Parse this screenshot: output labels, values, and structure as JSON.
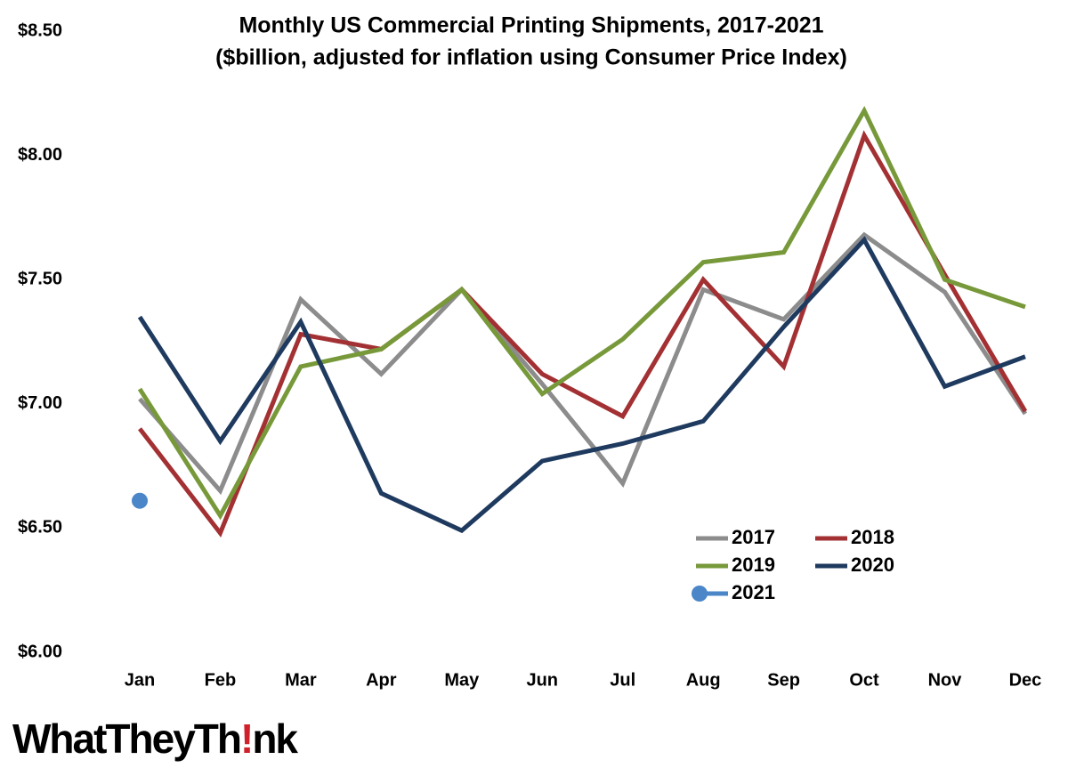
{
  "chart_data": {
    "type": "line",
    "title": "Monthly US Commercial Printing Shipments, 2017-2021",
    "subtitle": "($billion, adjusted for inflation using Consumer Price Index)",
    "categories": [
      "Jan",
      "Feb",
      "Mar",
      "Apr",
      "May",
      "Jun",
      "Jul",
      "Aug",
      "Sep",
      "Oct",
      "Nov",
      "Dec"
    ],
    "ylim": [
      6.0,
      8.5
    ],
    "yticks": [
      {
        "value": 6.0,
        "label": "$6.00"
      },
      {
        "value": 6.5,
        "label": "$6.50"
      },
      {
        "value": 7.0,
        "label": "$7.00"
      },
      {
        "value": 7.5,
        "label": "$7.50"
      },
      {
        "value": 8.0,
        "label": "$8.00"
      },
      {
        "value": 8.5,
        "label": "$8.50"
      }
    ],
    "grid": false,
    "legend": "lower right",
    "series": [
      {
        "name": "2017",
        "color": "#8c8c8c",
        "values": [
          7.02,
          6.65,
          7.42,
          7.12,
          7.46,
          7.08,
          6.68,
          7.46,
          7.34,
          7.68,
          7.45,
          6.96
        ]
      },
      {
        "name": "2018",
        "color": "#a33033",
        "values": [
          6.9,
          6.48,
          7.28,
          7.22,
          7.46,
          7.12,
          6.95,
          7.5,
          7.15,
          8.08,
          7.52,
          6.97
        ]
      },
      {
        "name": "2019",
        "color": "#77993a",
        "values": [
          7.06,
          6.55,
          7.15,
          7.22,
          7.46,
          7.04,
          7.26,
          7.57,
          7.61,
          8.18,
          7.5,
          7.39
        ]
      },
      {
        "name": "2020",
        "color": "#1f3a5f",
        "values": [
          7.35,
          6.85,
          7.33,
          6.64,
          6.49,
          6.77,
          6.84,
          6.93,
          7.31,
          7.66,
          7.07,
          7.19
        ]
      },
      {
        "name": "2021",
        "color": "#4a86c8",
        "values": [
          6.61,
          null,
          null,
          null,
          null,
          null,
          null,
          null,
          null,
          null,
          null,
          null
        ]
      }
    ]
  },
  "logo": {
    "parts": [
      "WhatTheyTh",
      "!",
      "nk"
    ]
  }
}
